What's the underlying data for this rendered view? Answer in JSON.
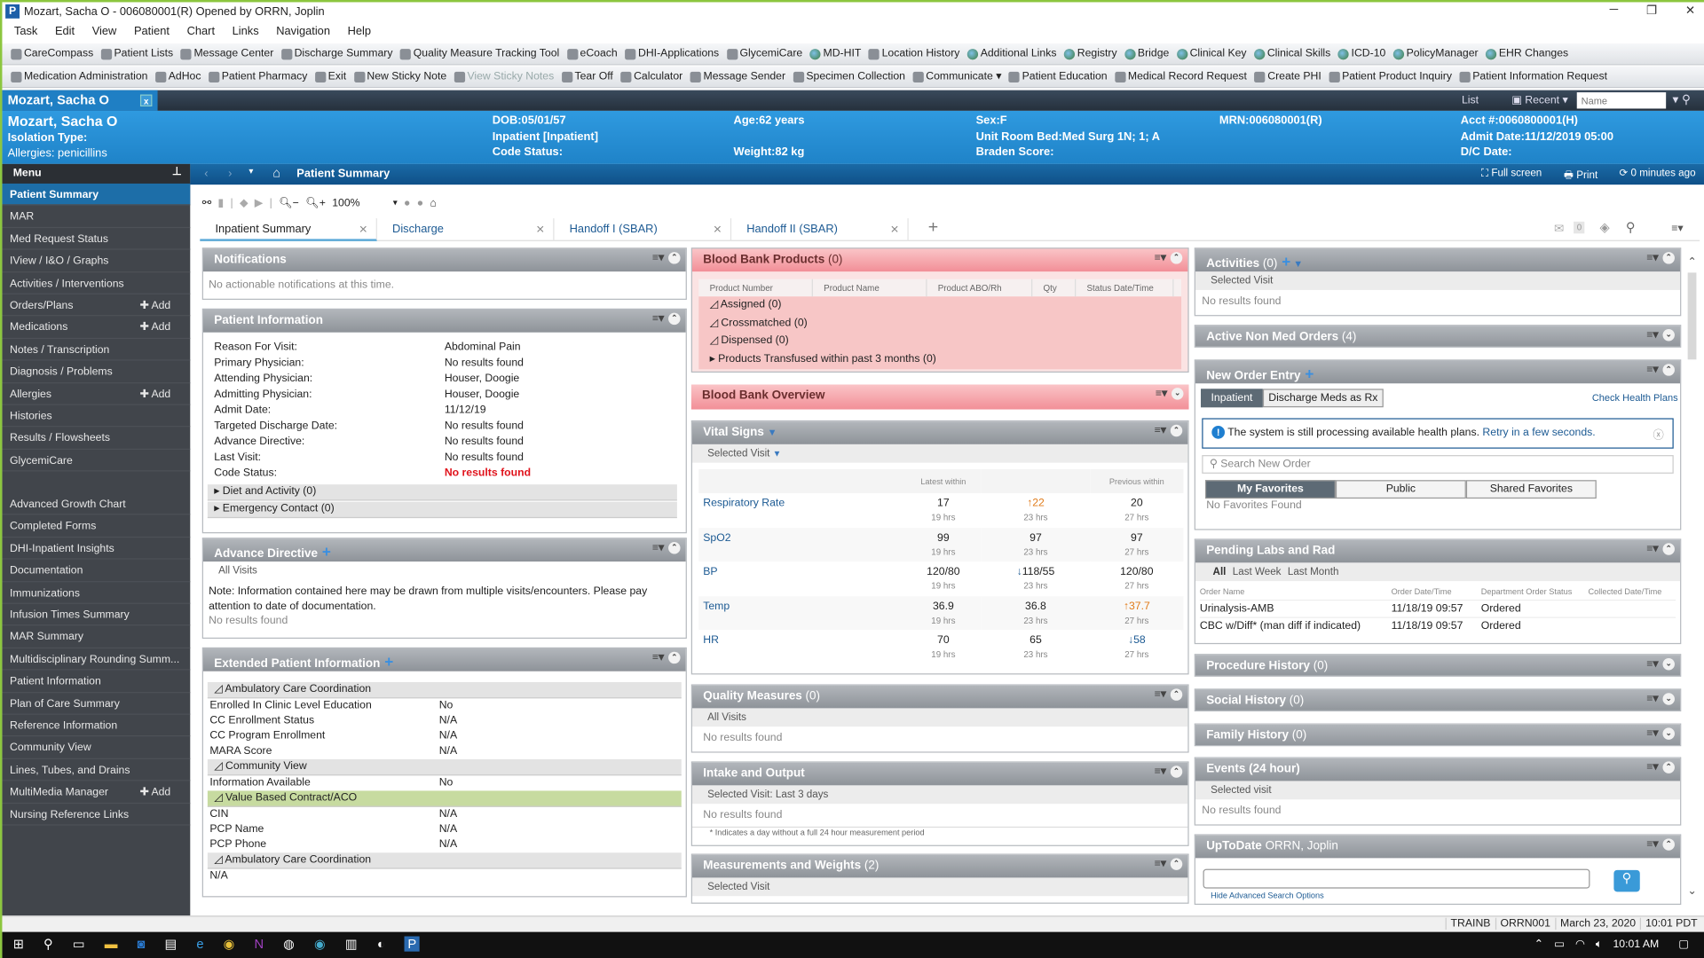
{
  "window": {
    "title": "Mozart, Sacha  O -  006080001(R) Opened by ORRN, Joplin",
    "logo": "P"
  },
  "menubar": [
    "Task",
    "Edit",
    "View",
    "Patient",
    "Chart",
    "Links",
    "Navigation",
    "Help"
  ],
  "toolbar1": [
    "CareCompass",
    "Patient Lists",
    "Message Center",
    "Discharge Summary",
    "Quality Measure Tracking Tool",
    "eCoach",
    "DHI-Applications",
    "GlycemiCare",
    "MD-HIT",
    "Location History",
    "Additional Links",
    "Registry",
    "Bridge",
    "Clinical Key",
    "Clinical Skills",
    "ICD-10",
    "PolicyManager",
    "EHR Changes"
  ],
  "toolbar2": [
    "Medication Administration",
    "AdHoc",
    "Patient Pharmacy",
    "Exit",
    "New Sticky Note",
    "View Sticky Notes",
    "Tear Off",
    "Calculator",
    "Message Sender",
    "Specimen Collection",
    "Communicate ▾",
    "Patient Education",
    "Medical Record Request",
    "Create PHI",
    "Patient Product Inquiry",
    "Patient Information Request"
  ],
  "toolbar2_disabled": [
    "View Sticky Notes"
  ],
  "patient_tab": {
    "label": "Mozart, Sacha   O",
    "close": "x"
  },
  "darkbar": {
    "list": "List",
    "recent": "Recent",
    "name_placeholder": "Name"
  },
  "banner": {
    "name": "Mozart, Sacha   O",
    "isolation": "Isolation Type:",
    "allergies": "Allergies: penicillins",
    "dob": "DOB:05/01/57",
    "encounter": "Inpatient [Inpatient]",
    "code_status": "Code Status:",
    "age": "Age:62 years",
    "weight": "Weight:82 kg",
    "sex": "Sex:F",
    "location": "Unit Room Bed:Med Surg 1N; 1; A",
    "braden": "Braden Score:",
    "mrn": "MRN:006080001(R)",
    "acct": "Acct #:0060800001(H)",
    "admit": "Admit Date:11/12/2019 05:00",
    "dc": "D/C Date:"
  },
  "sidebar": {
    "header": "Menu",
    "items": [
      {
        "label": "Patient Summary",
        "active": true
      },
      {
        "label": "MAR"
      },
      {
        "label": "Med Request Status"
      },
      {
        "label": "IView / I&O / Graphs"
      },
      {
        "label": "Activities / Interventions"
      },
      {
        "label": "Orders/Plans",
        "add": "Add"
      },
      {
        "label": "Medications",
        "add": "Add"
      },
      {
        "label": "Notes / Transcription"
      },
      {
        "label": "Diagnosis / Problems"
      },
      {
        "label": "Allergies",
        "add": "Add"
      },
      {
        "label": "Histories"
      },
      {
        "label": "Results / Flowsheets"
      },
      {
        "label": "GlycemiCare"
      },
      {
        "gap": true
      },
      {
        "label": "Advanced Growth Chart"
      },
      {
        "label": "Completed Forms"
      },
      {
        "label": "DHI-Inpatient Insights"
      },
      {
        "label": "Documentation"
      },
      {
        "label": "Immunizations"
      },
      {
        "label": "Infusion Times Summary"
      },
      {
        "label": "MAR Summary"
      },
      {
        "label": "Multidisciplinary Rounding Summ..."
      },
      {
        "label": "Patient Information"
      },
      {
        "label": "Plan of Care Summary"
      },
      {
        "label": "Reference Information"
      },
      {
        "label": "Community View"
      },
      {
        "label": "Lines, Tubes, and Drains"
      },
      {
        "label": "MultiMedia Manager",
        "add": "Add"
      },
      {
        "label": "Nursing Reference Links"
      }
    ]
  },
  "content_header": {
    "title": "Patient Summary",
    "fullscreen": "Full screen",
    "print": "Print",
    "refresh": "0 minutes ago"
  },
  "zoom": "100%",
  "tabs": [
    {
      "label": "Inpatient Summary",
      "active": true
    },
    {
      "label": "Discharge"
    },
    {
      "label": "Handoff I (SBAR)"
    },
    {
      "label": "Handoff II (SBAR)"
    }
  ],
  "mail_count": "0",
  "notifications": {
    "title": "Notifications",
    "body": "No actionable notifications at this time."
  },
  "patient_info": {
    "title": "Patient Information",
    "rows": [
      [
        "Reason For Visit:",
        "Abdominal Pain"
      ],
      [
        "Primary Physician:",
        "No results found"
      ],
      [
        "Attending Physician:",
        "Houser, Doogie"
      ],
      [
        "Admitting Physician:",
        "Houser, Doogie"
      ],
      [
        "Admit Date:",
        "11/12/19"
      ],
      [
        "Targeted Discharge Date:",
        "No results found"
      ],
      [
        "Advance Directive:",
        "No results found"
      ],
      [
        "Last Visit:",
        "No results found"
      ],
      [
        "Code Status:",
        "No results found"
      ]
    ],
    "groups": [
      "Diet and Activity (0)",
      "Emergency Contact (0)"
    ]
  },
  "advance_directive": {
    "title": "Advance Directive",
    "filter": "All Visits",
    "note": "Note: Information contained here may be drawn from multiple visits/encounters. Please pay attention to date of documentation.",
    "empty": "No results found"
  },
  "extended_info": {
    "title": "Extended Patient Information",
    "sections": [
      {
        "group": "Ambulatory Care Coordination",
        "rows": [
          [
            "Enrolled In Clinic Level Education",
            "No"
          ],
          [
            "CC Enrollment Status",
            "N/A"
          ],
          [
            "CC Program Enrollment",
            "N/A"
          ],
          [
            "MARA Score",
            "N/A"
          ]
        ]
      },
      {
        "group": "Community View",
        "rows": [
          [
            "Information Available",
            "No"
          ]
        ]
      },
      {
        "group": "Value Based Contract/ACO",
        "highlight": true,
        "rows": [
          [
            "CIN",
            "N/A"
          ],
          [
            "PCP Name",
            "N/A"
          ],
          [
            "PCP Phone",
            "N/A"
          ]
        ]
      },
      {
        "group": "Ambulatory Care Coordination",
        "rows": [
          [
            "N/A",
            ""
          ]
        ]
      }
    ]
  },
  "blood_bank_products": {
    "title": "Blood Bank Products",
    "count": "(0)",
    "columns": [
      "Product Number",
      "Product Name",
      "Product ABO/Rh",
      "Qty",
      "Status Date/Time"
    ],
    "groups": [
      "Assigned (0)",
      "Crossmatched (0)",
      "Dispensed (0)",
      "Products Transfused within past 3 months (0)"
    ]
  },
  "blood_bank_overview": {
    "title": "Blood Bank Overview"
  },
  "vital_signs": {
    "title": "Vital Signs",
    "filter": "Selected Visit",
    "columns": [
      "Latest within",
      "",
      "Previous within"
    ],
    "rows": [
      {
        "name": "Respiratory Rate",
        "latest": "17",
        "latest_time": "19 hrs",
        "prev1": "22",
        "prev1_flag": "up",
        "prev1_time": "23 hrs",
        "prev2": "20",
        "prev2_time": "27 hrs"
      },
      {
        "name": "SpO2",
        "latest": "99",
        "latest_time": "19 hrs",
        "prev1": "97",
        "prev1_time": "23 hrs",
        "prev2": "97",
        "prev2_time": "27 hrs"
      },
      {
        "name": "BP",
        "latest": "120/80",
        "latest_time": "19 hrs",
        "prev1": "118/55",
        "prev1_flag": "down",
        "prev1_time": "23 hrs",
        "prev2": "120/80",
        "prev2_time": "27 hrs"
      },
      {
        "name": "Temp",
        "latest": "36.9",
        "latest_time": "19 hrs",
        "prev1": "36.8",
        "prev1_time": "23 hrs",
        "prev2": "37.7",
        "prev2_flag": "up",
        "prev2_time": "27 hrs"
      },
      {
        "name": "HR",
        "latest": "70",
        "latest_time": "19 hrs",
        "prev1": "65",
        "prev1_time": "23 hrs",
        "prev2": "58",
        "prev2_flag": "down",
        "prev2_time": "27 hrs"
      }
    ]
  },
  "quality_measures": {
    "title": "Quality Measures",
    "count": "(0)",
    "filter": "All Visits",
    "empty": "No results found"
  },
  "intake_output": {
    "title": "Intake and Output",
    "filter": "Selected Visit: Last 3 days",
    "empty": "No results found",
    "footnote": "* Indicates a day without a full 24 hour measurement period"
  },
  "measurements": {
    "title": "Measurements and Weights",
    "count": "(2)",
    "filter": "Selected Visit"
  },
  "activities": {
    "title": "Activities",
    "count": "(0)",
    "filter": "Selected Visit",
    "empty": "No results found"
  },
  "active_non_med": {
    "title": "Active Non Med Orders",
    "count": "(4)"
  },
  "new_order": {
    "title": "New Order Entry",
    "tabs": [
      "Inpatient",
      "Discharge Meds as Rx"
    ],
    "check": "Check Health Plans",
    "alert": "The system is still processing available health plans.",
    "retry": "Retry in a few seconds.",
    "search_placeholder": "Search New Order",
    "fav_tabs": [
      "My Favorites",
      "Public",
      "Shared Favorites"
    ],
    "empty": "No Favorites Found"
  },
  "pending_labs": {
    "title": "Pending Labs and Rad",
    "filters": [
      "All",
      "Last Week",
      "Last Month"
    ],
    "columns": [
      "Order Name",
      "Order Date/Time",
      "Department Order Status",
      "Collected Date/Time"
    ],
    "rows": [
      [
        "Urinalysis-AMB",
        "11/18/19 09:57",
        "Ordered",
        ""
      ],
      [
        "CBC w/Diff* (man diff if indicated)",
        "11/18/19 09:57",
        "Ordered",
        ""
      ]
    ]
  },
  "procedure_history": {
    "title": "Procedure History",
    "count": "(0)"
  },
  "social_history": {
    "title": "Social History",
    "count": "(0)"
  },
  "family_history": {
    "title": "Family History",
    "count": "(0)"
  },
  "events": {
    "title": "Events (24 hour)",
    "filter": "Selected visit",
    "empty": "No results found"
  },
  "uptodate": {
    "title": "UpToDate",
    "user": "ORRN, Joplin",
    "link": "Hide Advanced Search Options"
  },
  "status_bar": [
    "TRAINB",
    "ORRN001",
    "March 23, 2020",
    "10:01 PDT"
  ],
  "taskbar": {
    "time": "10:01 AM"
  },
  "colors": {
    "accent": "#1f83c8",
    "pink_header": "#f28f97",
    "sidebar": "#41454b",
    "alert_red": "#e0121b"
  }
}
